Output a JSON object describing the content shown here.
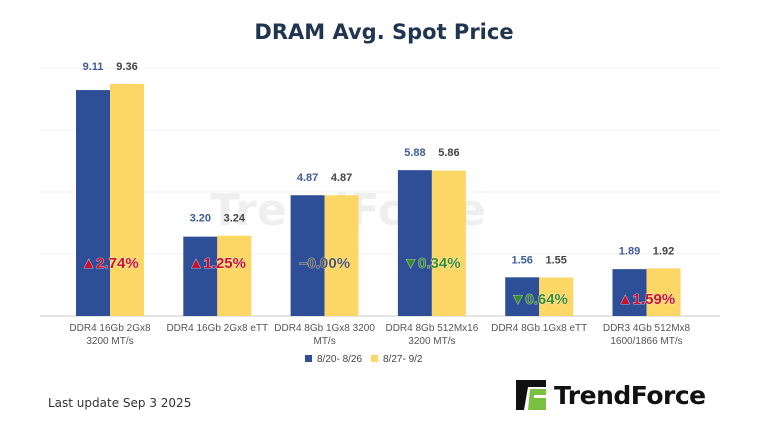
{
  "chart_data": {
    "type": "bar",
    "title": "DRAM Avg. Spot Price",
    "categories": [
      "DDR4 16Gb 2Gx8\n3200 MT/s",
      "DDR4 16Gb 2Gx8 eTT",
      "DDR4 8Gb 1Gx8 3200\nMT/s",
      "DDR4 8Gb 512Mx16\n3200 MT/s",
      "DDR4 8Gb 1Gx8 eTT",
      "DDR3 4Gb 512Mx8\n1600/1866  MT/s"
    ],
    "series": [
      {
        "name": "8/20- 8/26",
        "color": "#2e4f98",
        "values": [
          9.11,
          3.2,
          4.87,
          5.88,
          1.56,
          1.89
        ],
        "labels": [
          "9.11",
          "3.20",
          "4.87",
          "5.88",
          "1.56",
          "1.89"
        ]
      },
      {
        "name": "8/27- 9/2",
        "color": "#fdd765",
        "values": [
          9.36,
          3.24,
          4.87,
          5.86,
          1.55,
          1.92
        ],
        "labels": [
          "9.36",
          "3.24",
          "4.87",
          "5.86",
          "1.55",
          "1.92"
        ]
      }
    ],
    "changes": [
      {
        "text": "▲2.74%",
        "direction": "up",
        "color": "#c8102e"
      },
      {
        "text": "▲1.25%",
        "direction": "up",
        "color": "#c8102e"
      },
      {
        "text": "–0.00%",
        "direction": "flat",
        "color": "#555555"
      },
      {
        "text": "▼0.34%",
        "direction": "down",
        "color": "#3a8a2a"
      },
      {
        "text": "▼0.64%",
        "direction": "down",
        "color": "#3a8a2a"
      },
      {
        "text": "▲1.59%",
        "direction": "up",
        "color": "#c8102e"
      }
    ],
    "ylim": [
      0,
      10
    ],
    "grid": true,
    "legend": "bottom"
  },
  "footer": {
    "last_update": "Last update Sep 3  2025"
  },
  "logo": {
    "text": "TrendForce",
    "watermark": "TrendForce"
  }
}
